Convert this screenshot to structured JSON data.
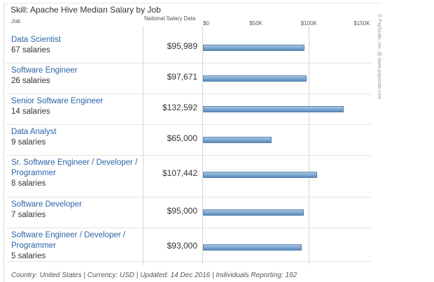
{
  "chart_data": {
    "type": "bar",
    "orientation": "horizontal",
    "title": "Skill: Apache Hive Median Salary by Job",
    "column_headers": {
      "job": "Job",
      "national": "National Salary Data"
    },
    "xlim": [
      0,
      150000
    ],
    "ticks": [
      {
        "value": 0,
        "label": "$0"
      },
      {
        "value": 50000,
        "label": "$50K"
      },
      {
        "value": 100000,
        "label": "$100K"
      },
      {
        "value": 150000,
        "label": "$150K"
      }
    ],
    "grid": true,
    "categories": [
      {
        "title": "Data Scientist",
        "count": "67 salaries",
        "value": 95989,
        "label": "$95,989"
      },
      {
        "title": "Software Engineer",
        "count": "26 salaries",
        "value": 97671,
        "label": "$97,671"
      },
      {
        "title": "Senior Software Engineer",
        "count": "14 salaries",
        "value": 132592,
        "label": "$132,592"
      },
      {
        "title": "Data Analyst",
        "count": "9 salaries",
        "value": 65000,
        "label": "$65,000"
      },
      {
        "title": "Sr. Software Engineer / Developer / Programmer",
        "count": "8 salaries",
        "value": 107442,
        "label": "$107,442"
      },
      {
        "title": "Software Developer",
        "count": "7 salaries",
        "value": 95000,
        "label": "$95,000"
      },
      {
        "title": "Software Engineer / Developer / Programmer",
        "count": "5 salaries",
        "value": 93000,
        "label": "$93,000"
      }
    ],
    "bar_color": "#7fa8d1",
    "footer": "Country: United States | Currency: USD | Updated: 14 Dec 2016 | Individuals Reporting: 192",
    "watermark": "© PayScale, Inc. @ www.payscale.com"
  }
}
